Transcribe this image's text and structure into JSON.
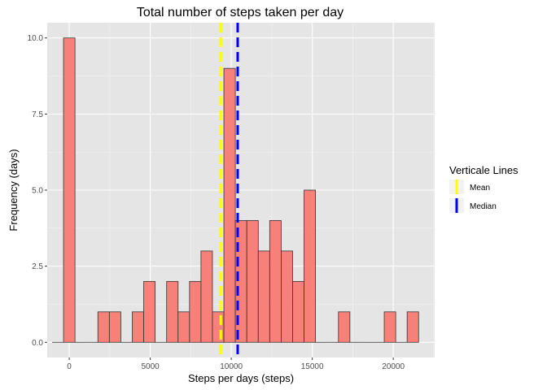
{
  "chart_data": {
    "type": "bar",
    "title": "Total number of steps taken per day",
    "xlabel": "Steps per days (steps)",
    "ylabel": "Frequency (days)",
    "xlim": [
      -1361,
      22555
    ],
    "ylim": [
      -0.5,
      10.5
    ],
    "x_ticks": [
      0,
      5000,
      10000,
      15000,
      20000
    ],
    "x_tick_labels": [
      "0",
      "5000",
      "10000",
      "15000",
      "20000"
    ],
    "y_ticks": [
      0,
      2.5,
      5,
      7.5,
      10
    ],
    "y_tick_labels": [
      "0.0",
      "2.5",
      "5.0",
      "7.5",
      "10.0"
    ],
    "bin_width": 707,
    "bins": [
      {
        "center": -707,
        "count": 0
      },
      {
        "center": 0,
        "count": 10
      },
      {
        "center": 707,
        "count": 0
      },
      {
        "center": 1414,
        "count": 0
      },
      {
        "center": 2121,
        "count": 1
      },
      {
        "center": 2828,
        "count": 1
      },
      {
        "center": 3535,
        "count": 0
      },
      {
        "center": 4242,
        "count": 1
      },
      {
        "center": 4949,
        "count": 2
      },
      {
        "center": 5656,
        "count": 0
      },
      {
        "center": 6363,
        "count": 2
      },
      {
        "center": 7070,
        "count": 1
      },
      {
        "center": 7777,
        "count": 2
      },
      {
        "center": 8484,
        "count": 3
      },
      {
        "center": 9191,
        "count": 1
      },
      {
        "center": 9898,
        "count": 9
      },
      {
        "center": 10605,
        "count": 4
      },
      {
        "center": 11312,
        "count": 4
      },
      {
        "center": 12019,
        "count": 3
      },
      {
        "center": 12726,
        "count": 4
      },
      {
        "center": 13433,
        "count": 3
      },
      {
        "center": 14140,
        "count": 2
      },
      {
        "center": 14847,
        "count": 5
      },
      {
        "center": 15554,
        "count": 0
      },
      {
        "center": 16261,
        "count": 0
      },
      {
        "center": 16968,
        "count": 1
      },
      {
        "center": 17675,
        "count": 0
      },
      {
        "center": 18382,
        "count": 0
      },
      {
        "center": 19089,
        "count": 0
      },
      {
        "center": 19796,
        "count": 1
      },
      {
        "center": 20503,
        "count": 0
      },
      {
        "center": 21210,
        "count": 1
      }
    ],
    "bar_fill": "#F8766D",
    "bar_outline": "#333333",
    "panel_background": "#E5E5E5",
    "vlines": [
      {
        "name": "Mean",
        "value": 9354,
        "color": "#FFFF00"
      },
      {
        "name": "Median",
        "value": 10395,
        "color": "#0000FF"
      }
    ],
    "legend": {
      "title": "Verticale Lines",
      "position": "right",
      "entries": [
        "Mean",
        "Median"
      ]
    },
    "grid": true
  }
}
